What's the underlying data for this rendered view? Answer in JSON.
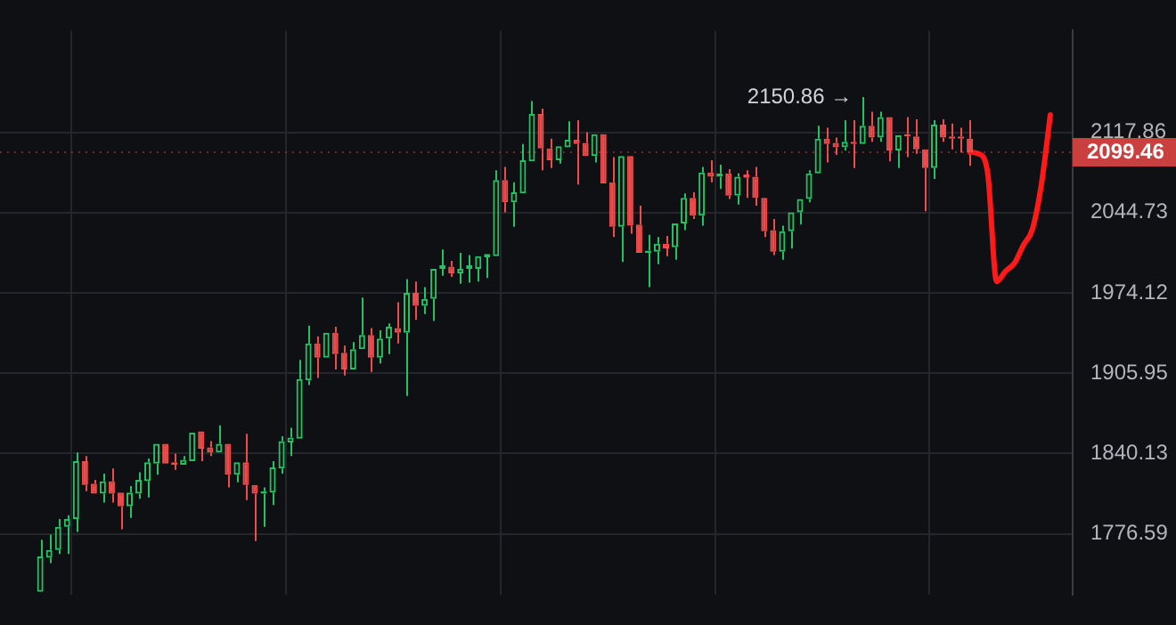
{
  "chart_data": {
    "type": "candlestick",
    "categories": [
      null,
      null,
      null,
      null,
      null,
      null,
      null,
      null,
      null,
      null,
      null,
      null,
      null,
      null,
      null,
      null,
      null,
      null,
      null,
      null,
      null,
      null,
      null,
      null,
      null,
      null,
      null,
      null,
      null,
      null,
      null,
      null,
      null,
      null,
      null,
      null,
      null,
      null,
      null,
      null,
      null,
      null,
      null,
      null,
      null,
      null,
      null,
      null,
      null,
      null,
      null,
      null,
      null,
      null,
      null,
      null,
      null,
      null,
      null,
      null,
      null,
      null,
      null,
      null,
      null,
      null,
      null,
      null,
      null,
      null,
      null,
      null,
      null,
      null,
      null,
      null,
      null,
      null,
      null,
      null,
      null,
      null,
      null,
      null,
      null,
      null,
      null,
      null,
      null,
      null,
      null,
      null,
      null,
      null,
      null,
      null,
      null,
      null,
      null,
      null,
      null,
      null,
      null,
      null,
      null,
      null,
      null,
      null,
      null,
      null,
      null,
      null,
      null,
      null,
      null,
      null,
      null,
      null,
      null,
      null
    ],
    "ohlc": [
      null,
      null,
      null,
      null,
      [
        1732,
        1772,
        1732,
        1759
      ],
      [
        1758,
        1776,
        1754,
        1764
      ],
      [
        1764,
        1788,
        1761,
        1782
      ],
      [
        1782,
        1791,
        1761,
        1788
      ],
      [
        1788,
        1841,
        1778,
        1834
      ],
      [
        1834,
        1838,
        1810,
        1815
      ],
      [
        1816,
        1819,
        1807,
        1808
      ],
      [
        1808,
        1824,
        1801,
        1818
      ],
      [
        1818,
        1828,
        1801,
        1808
      ],
      [
        1809,
        1809,
        1780,
        1798
      ],
      [
        1798,
        1814,
        1789,
        1809
      ],
      [
        1808,
        1825,
        1804,
        1819
      ],
      [
        1818,
        1836,
        1805,
        1833
      ],
      [
        1832,
        1850,
        1823,
        1848
      ],
      [
        1848,
        1850,
        1831,
        1832
      ],
      [
        1833,
        1840,
        1827,
        1831
      ],
      [
        1831,
        1838,
        1829,
        1835
      ],
      [
        1834,
        1857,
        1834,
        1857
      ],
      [
        1858,
        1859,
        1834,
        1844
      ],
      [
        1845,
        1850,
        1838,
        1841
      ],
      [
        1841,
        1863,
        1839,
        1848
      ],
      [
        1848,
        1848,
        1813,
        1823
      ],
      [
        1823,
        1835,
        1817,
        1833
      ],
      [
        1833,
        1856,
        1803,
        1815
      ],
      [
        1815,
        1817,
        1771,
        1808
      ],
      [
        1808,
        1813,
        1782,
        1810
      ],
      [
        1809,
        1834,
        1799,
        1829
      ],
      [
        1828,
        1854,
        1824,
        1850
      ],
      [
        1849,
        1861,
        1838,
        1853
      ],
      [
        1852,
        1917,
        1851,
        1901
      ],
      [
        1900,
        1946,
        1896,
        1931
      ],
      [
        1931,
        1937,
        1902,
        1919
      ],
      [
        1919,
        1940,
        1919,
        1940
      ],
      [
        1940,
        1945,
        1909,
        1922
      ],
      [
        1923,
        1929,
        1904,
        1909
      ],
      [
        1909,
        1932,
        1909,
        1926
      ],
      [
        1926,
        1970,
        1924,
        1938
      ],
      [
        1938,
        1944,
        1907,
        1919
      ],
      [
        1919,
        1942,
        1914,
        1935
      ],
      [
        1935,
        1948,
        1922,
        1945
      ],
      [
        1944,
        1966,
        1931,
        1940
      ],
      [
        1940,
        1986,
        1887,
        1974
      ],
      [
        1974,
        1984,
        1951,
        1963
      ],
      [
        1963,
        1979,
        1956,
        1969
      ],
      [
        1969,
        1995,
        1950,
        1995
      ],
      [
        1995,
        2012,
        1989,
        1998
      ],
      [
        1997,
        2002,
        1988,
        1991
      ],
      [
        1991,
        2009,
        1982,
        1995
      ],
      [
        1995,
        2007,
        1983,
        1998
      ],
      [
        1995,
        2007,
        1984,
        2006
      ],
      [
        2005,
        2010,
        1987,
        2008
      ],
      [
        2006,
        2083,
        2005,
        2074
      ],
      [
        2074,
        2086,
        2045,
        2054
      ],
      [
        2054,
        2072,
        2032,
        2063
      ],
      [
        2062,
        2107,
        2062,
        2092
      ],
      [
        2091,
        2147,
        2090,
        2135
      ],
      [
        2135,
        2140,
        2083,
        2103
      ],
      [
        2103,
        2112,
        2085,
        2092
      ],
      [
        2092,
        2107,
        2089,
        2105
      ],
      [
        2104,
        2128,
        2102,
        2111
      ],
      [
        2111,
        2129,
        2070,
        2107
      ],
      [
        2108,
        2118,
        2096,
        2096
      ],
      [
        2096,
        2116,
        2090,
        2116
      ],
      [
        2116,
        2116,
        2071,
        2071
      ],
      [
        2072,
        2095,
        2023,
        2032
      ],
      [
        2032,
        2096,
        2001,
        2096
      ],
      [
        2096,
        2096,
        2026,
        2033
      ],
      [
        2034,
        2051,
        2009,
        2009
      ],
      [
        2009,
        2025,
        1979,
        2011
      ],
      [
        2010,
        2023,
        1999,
        2017
      ],
      [
        2017,
        2024,
        2006,
        2013
      ],
      [
        2014,
        2036,
        2003,
        2035
      ],
      [
        2035,
        2062,
        2029,
        2058
      ],
      [
        2058,
        2063,
        2039,
        2042
      ],
      [
        2042,
        2086,
        2033,
        2081
      ],
      [
        2081,
        2092,
        2072,
        2077
      ],
      [
        2077,
        2088,
        2066,
        2080
      ],
      [
        2080,
        2084,
        2057,
        2060
      ],
      [
        2060,
        2080,
        2052,
        2077
      ],
      [
        2079,
        2083,
        2058,
        2076
      ],
      [
        2077,
        2086,
        2051,
        2058
      ],
      [
        2058,
        2058,
        2023,
        2028
      ],
      [
        2029,
        2039,
        2007,
        2010
      ],
      [
        2010,
        2033,
        2003,
        2028
      ],
      [
        2028,
        2046,
        2013,
        2045
      ],
      [
        2045,
        2058,
        2034,
        2057
      ],
      [
        2057,
        2083,
        2054,
        2080
      ],
      [
        2080,
        2124,
        2079,
        2112
      ],
      [
        2112,
        2122,
        2090,
        2107
      ],
      [
        2108,
        2113,
        2097,
        2104
      ],
      [
        2104,
        2129,
        2101,
        2109
      ],
      [
        2109,
        2129,
        2085,
        2107
      ],
      [
        2107,
        2150.86,
        2107,
        2124
      ],
      [
        2124,
        2137,
        2109,
        2113
      ],
      [
        2113,
        2137,
        2109,
        2132
      ],
      [
        2132,
        2132,
        2091,
        2101
      ],
      [
        2101,
        2117,
        2085,
        2115
      ],
      [
        2116,
        2132,
        2095,
        2114
      ],
      [
        2114,
        2130,
        2098,
        2102
      ],
      [
        2102,
        2102,
        2046,
        2085
      ],
      [
        2085,
        2129,
        2075,
        2125
      ],
      [
        2125,
        2130,
        2109,
        2113
      ],
      [
        2114,
        2126,
        2102,
        2112
      ],
      [
        2114,
        2122,
        2099,
        2112
      ],
      [
        2112,
        2129,
        2087,
        2099.46
      ],
      null,
      null,
      null,
      null,
      null,
      null,
      null,
      null,
      null,
      null,
      null
    ],
    "colors": [
      null,
      null,
      null,
      null,
      "#26c165",
      "#26c165",
      "#26c165",
      "#26c165",
      "#26c165",
      "#ef4d4d",
      "#ef4d4d",
      "#26c165",
      "#ef4d4d",
      "#ef4d4d",
      "#26c165",
      "#26c165",
      "#26c165",
      "#26c165",
      "#ef4d4d",
      "#ef4d4d",
      "#26c165",
      "#26c165",
      "#ef4d4d",
      "#ef4d4d",
      "#26c165",
      "#ef4d4d",
      "#26c165",
      "#ef4d4d",
      "#ef4d4d",
      "#26c165",
      "#26c165",
      "#26c165",
      "#26c165",
      "#26c165",
      "#26c165",
      "#ef4d4d",
      "#26c165",
      "#ef4d4d",
      "#ef4d4d",
      "#26c165",
      "#26c165",
      "#ef4d4d",
      "#26c165",
      "#26c165",
      "#ef4d4d",
      "#26c165",
      "#ef4d4d",
      "#26c165",
      "#26c165",
      "#26c165",
      "#ef4d4d",
      "#26c165",
      "#26c165",
      "#26c165",
      "#26c165",
      "#26c165",
      "#ef4d4d",
      "#26c165",
      "#26c165",
      "#26c165",
      "#ef4d4d",
      "#ef4d4d",
      "#26c165",
      "#26c165",
      "#ef4d4d",
      "#ef4d4d",
      "#26c165",
      "#ef4d4d",
      "#ef4d4d",
      "#26c165",
      "#ef4d4d",
      "#ef4d4d",
      "#26c165",
      "#26c165",
      "#ef4d4d",
      "#26c165",
      "#26c165",
      "#ef4d4d",
      "#26c165",
      "#ef4d4d",
      "#26c165",
      "#ef4d4d",
      "#26c165",
      "#ef4d4d",
      "#ef4d4d",
      "#ef4d4d",
      "#ef4d4d",
      "#26c165",
      "#26c165",
      "#26c165",
      "#26c165",
      "#26c165",
      "#ef4d4d",
      "#ef4d4d",
      "#26c165",
      "#ef4d4d",
      "#26c165",
      "#ef4d4d",
      "#26c165",
      "#ef4d4d",
      "#26c165",
      "#ef4d4d",
      "#ef4d4d",
      "#ef4d4d",
      "#26c165",
      "#ef4d4d",
      "#ef4d4d",
      "#ef4d4d",
      "#ef4d4d",
      null,
      null,
      null,
      null,
      null,
      null,
      null,
      null,
      null,
      null,
      null
    ],
    "series": [
      {
        "type": "line",
        "color": "#ff1a1a",
        "values": [
          null,
          null,
          null,
          null,
          null,
          null,
          null,
          null,
          null,
          null,
          null,
          null,
          null,
          null,
          null,
          null,
          null,
          null,
          null,
          null,
          null,
          null,
          null,
          null,
          null,
          null,
          null,
          null,
          null,
          null,
          null,
          null,
          null,
          null,
          null,
          null,
          null,
          null,
          null,
          null,
          null,
          null,
          null,
          null,
          null,
          null,
          null,
          null,
          null,
          null,
          null,
          null,
          null,
          null,
          null,
          null,
          null,
          null,
          null,
          null,
          null,
          null,
          null,
          null,
          null,
          null,
          null,
          null,
          null,
          null,
          null,
          null,
          null,
          null,
          null,
          null,
          null,
          null,
          null,
          null,
          null,
          null,
          null,
          null,
          null,
          null,
          null,
          null,
          null,
          null,
          null,
          null,
          null,
          null,
          null,
          null,
          null,
          null,
          null,
          null,
          null,
          null,
          null,
          null,
          null,
          null,
          null,
          null,
          2099.46,
          2098,
          2080,
          1984,
          1993,
          2000,
          2016,
          2030,
          2070,
          2134,
          null,
          null
        ]
      }
    ],
    "ylim": [
      1730.1,
      2214.2
    ],
    "yticks": [
      1776.59,
      1840.13,
      1905.95,
      1974.12,
      2044.73,
      2117.86
    ],
    "log": true,
    "grid": true,
    "tick_labels": "y",
    "ref_lines": [
      {
        "axis": "y",
        "value": 2099.46,
        "label": "2099.46",
        "color": "#c9403f"
      }
    ],
    "annotations": [
      "2150.86 →"
    ]
  }
}
